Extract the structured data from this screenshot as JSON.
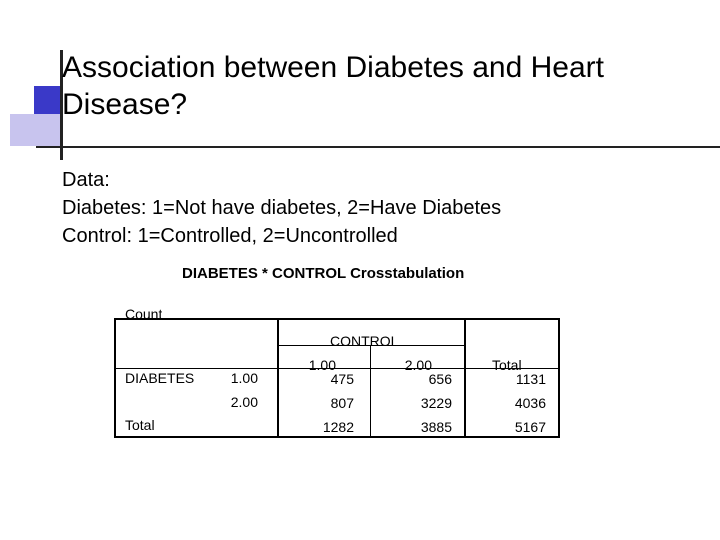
{
  "slide": {
    "title": "Association between Diabetes and Heart Disease?",
    "lines": [
      "Data:",
      "Diabetes: 1=Not have diabetes, 2=Have Diabetes",
      "Control: 1=Controlled, 2=Uncontrolled"
    ]
  },
  "crosstab": {
    "title": "DIABETES * CONTROL Crosstabulation",
    "measure_label": "Count",
    "column_variable": "CONTROL",
    "column_headers": [
      "1.00",
      "2.00",
      "Total"
    ],
    "row_variable": "DIABETES",
    "rows": [
      {
        "label": "1.00",
        "values": [
          "475",
          "656",
          "1131"
        ]
      },
      {
        "label": "2.00",
        "values": [
          "807",
          "3229",
          "4036"
        ]
      }
    ],
    "total_row": {
      "label": "Total",
      "values": [
        "1282",
        "3885",
        "5167"
      ]
    }
  },
  "colors": {
    "accent_dark": "#3a39c8",
    "accent_light": "#c8c4ee"
  }
}
